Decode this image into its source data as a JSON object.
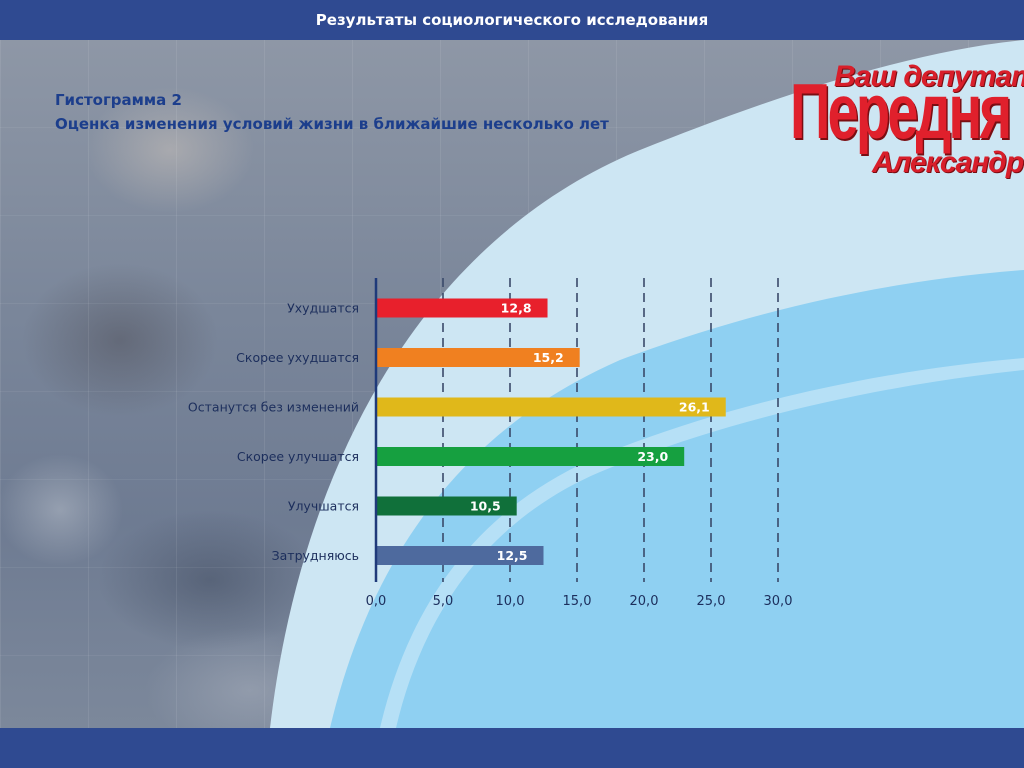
{
  "header": {
    "title": "Результаты социологического исследования"
  },
  "subtitle": {
    "line1": "Гистограмма 2",
    "line2": "Оценка изменения условий жизни в ближайшие несколько лет"
  },
  "logo": {
    "line1": "Ваш депутат",
    "line2": "Передня",
    "line3": "Александр"
  },
  "colors": {
    "header": "#2f4a91",
    "title": "#1c3e8c",
    "wave_light": "#cde6f3",
    "wave_mid": "#8fd0f2",
    "logo_red": "#e0202c"
  },
  "chart_data": {
    "type": "bar",
    "orientation": "horizontal",
    "title": "",
    "categories": [
      "Ухудшатся",
      "Скорее ухудшатся",
      "Останутся без изменений",
      "Скорее улучшатся",
      "Улучшатся",
      "Затрудняюсь"
    ],
    "values": [
      12.8,
      15.2,
      26.1,
      23.0,
      10.5,
      12.5
    ],
    "value_labels": [
      "12,8",
      "15,2",
      "26,1",
      "23,0",
      "10,5",
      "12,5"
    ],
    "colors": [
      "#e8202c",
      "#f08020",
      "#e0b81a",
      "#16a040",
      "#10703a",
      "#4e6a9e"
    ],
    "xlim": [
      0,
      30
    ],
    "ticks": [
      0,
      5,
      10,
      15,
      20,
      25,
      30
    ],
    "tick_labels": [
      "0,0",
      "5,0",
      "10,0",
      "15,0",
      "20,0",
      "25,0",
      "30,0"
    ],
    "grid": "vertical-dashed",
    "legend": "none",
    "xlabel": "",
    "ylabel": ""
  }
}
